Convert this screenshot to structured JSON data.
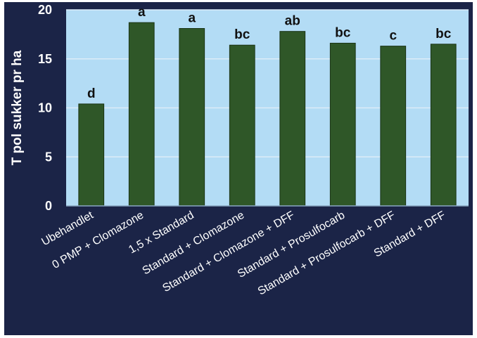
{
  "chart_data": {
    "type": "bar",
    "title": "",
    "xlabel": "",
    "ylabel": "T pol sukker pr ha",
    "ylim": [
      0,
      20
    ],
    "yticks": [
      0,
      5,
      10,
      15,
      20
    ],
    "grid": true,
    "legend": "none",
    "categories": [
      "Ubehandlet",
      "0 PMP + Clomazone",
      "1,5 x Standard",
      "Standard + Clomazone",
      "Standard + Clomazone + DFF",
      "Standard + Prosulfocarb",
      "Standard + Prosulfocarb + DFF",
      "Standard + DFF"
    ],
    "values": [
      10.4,
      18.7,
      18.1,
      16.4,
      17.8,
      16.6,
      16.3,
      16.5
    ],
    "annotations": [
      "d",
      "a",
      "a",
      "bc",
      "ab",
      "bc",
      "c",
      "bc"
    ]
  },
  "colors": {
    "frame_background": "#1b2447",
    "plot_background": "#b3dcf5",
    "bar_fill": "#2f5728",
    "bar_stroke": "#1a3315",
    "gridline": "#dcecf8",
    "text_light": "#ffffff",
    "text_dark": "#111111"
  }
}
